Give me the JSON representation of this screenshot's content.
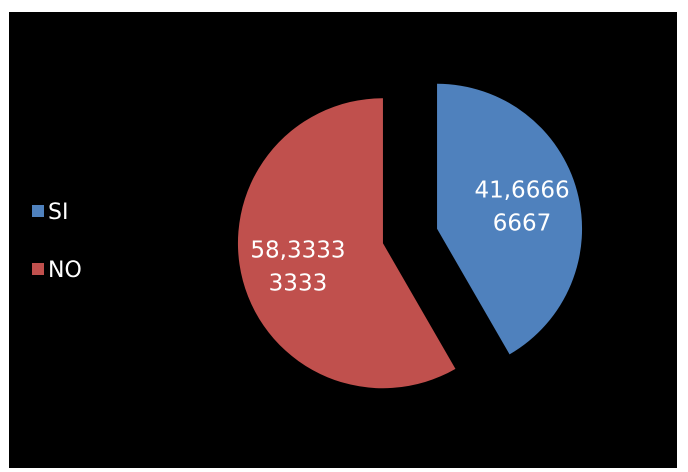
{
  "chart_data": {
    "type": "pie",
    "categories": [
      "SI",
      "NO"
    ],
    "values": [
      41.66666667,
      58.33333333
    ],
    "data_labels": [
      [
        "41,6666",
        "6667"
      ],
      [
        "58,3333",
        "3333"
      ]
    ],
    "colors": [
      "#4f81bd",
      "#c0504d"
    ],
    "background": "#000000",
    "exploded": true,
    "title": "",
    "legend": {
      "position": "left",
      "entries": [
        "SI",
        "NO"
      ]
    }
  }
}
